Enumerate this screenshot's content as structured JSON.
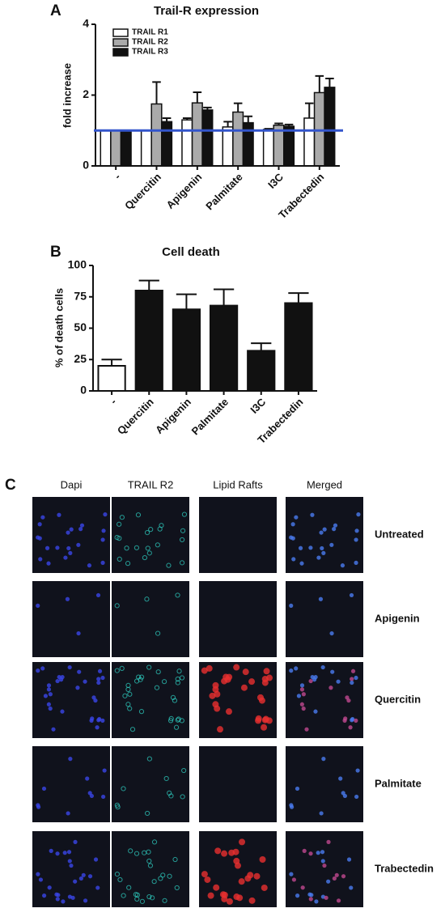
{
  "chart_data": [
    {
      "type": "bar",
      "panel_label": "A",
      "title": "Trail-R expression",
      "y_label": "fold increase",
      "categories": [
        "-",
        "Quercitin",
        "Apigenin",
        "Palmitate",
        "I3C",
        "Trabectedin"
      ],
      "series": [
        {
          "name": "TRAIL R1",
          "color": "#ffffff",
          "values": [
            1,
            1,
            1.3,
            1.1,
            1.03,
            1.35
          ],
          "errors": [
            0,
            0,
            0.05,
            0.15,
            0.02,
            0.42
          ]
        },
        {
          "name": "TRAIL R2",
          "color": "#aaaaaa",
          "values": [
            1,
            1.75,
            1.78,
            1.52,
            1.15,
            2.07
          ],
          "errors": [
            0,
            0.62,
            0.3,
            0.25,
            0.05,
            0.47
          ]
        },
        {
          "name": "TRAIL R3",
          "color": "#111111",
          "values": [
            1,
            1.25,
            1.58,
            1.22,
            1.12,
            2.22
          ],
          "errors": [
            0,
            0.1,
            0.07,
            0.18,
            0.05,
            0.25
          ]
        }
      ],
      "reference_line": {
        "value": 1,
        "color": "#3355cc"
      },
      "ylim": [
        0,
        4
      ],
      "yticks": [
        0,
        2,
        4
      ],
      "legend": "top-left"
    },
    {
      "type": "bar",
      "panel_label": "B",
      "title": "Cell death",
      "y_label": "% of death cells",
      "categories": [
        "-",
        "Quercitin",
        "Apigenin",
        "Palmitate",
        "I3C",
        "Trabectedin"
      ],
      "values": [
        20,
        80,
        65,
        68,
        32,
        70
      ],
      "errors": [
        5,
        8,
        12,
        13,
        6,
        8
      ],
      "colors": [
        "#ffffff",
        "#111111",
        "#111111",
        "#111111",
        "#111111",
        "#111111"
      ],
      "ylim": [
        0,
        100
      ],
      "yticks": [
        0,
        25,
        50,
        75,
        100
      ]
    }
  ],
  "figure_c": {
    "panel_label": "C",
    "columns": [
      "Dapi",
      "TRAIL R2",
      "Lipid Rafts",
      "Merged"
    ],
    "rows": [
      "Untreated",
      "Apigenin",
      "Quercitin",
      "Palmitate",
      "Trabectedin"
    ]
  }
}
